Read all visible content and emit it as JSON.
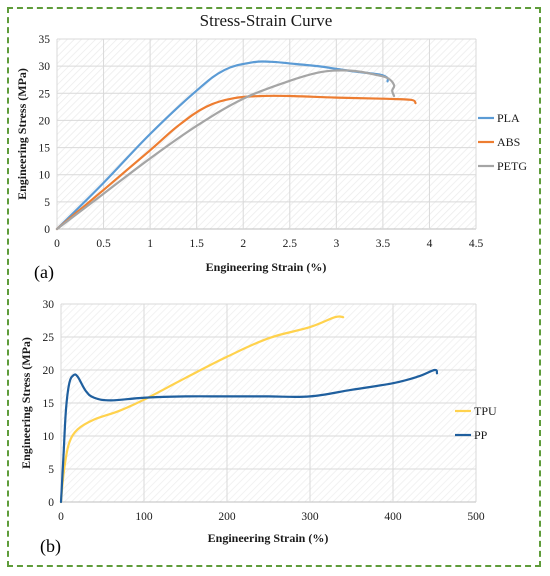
{
  "colors": {
    "frame": "#5e9c3a",
    "grid": "#d9d9d9",
    "axis": "#bfbfbf"
  },
  "chart_data": [
    {
      "type": "line",
      "title": "Stress-Strain Curve",
      "panel_label": "(a)",
      "xlabel": "Engineering Strain (%)",
      "ylabel": "Engineering Stress (MPa)",
      "xlim": [
        0,
        4.5
      ],
      "ylim": [
        0,
        35
      ],
      "x_ticks": [
        "0",
        "0.5",
        "1",
        "1.5",
        "2",
        "2.5",
        "3",
        "3.5",
        "4",
        "4.5"
      ],
      "y_ticks": [
        "0",
        "5",
        "10",
        "15",
        "20",
        "25",
        "30",
        "35"
      ],
      "grid": true,
      "legend": "right",
      "series": [
        {
          "name": "PLA",
          "color": "#5b9bd5",
          "points": [
            [
              0,
              0
            ],
            [
              0.5,
              8.5
            ],
            [
              1,
              17.5
            ],
            [
              1.5,
              25.5
            ],
            [
              1.8,
              29.3
            ],
            [
              2.1,
              30.7
            ],
            [
              2.3,
              30.8
            ],
            [
              2.5,
              30.5
            ],
            [
              2.8,
              30
            ],
            [
              3,
              29.5
            ],
            [
              3.2,
              29
            ],
            [
              3.4,
              28.6
            ],
            [
              3.5,
              28.3
            ],
            [
              3.55,
              27.8
            ],
            [
              3.55,
              27.2
            ]
          ]
        },
        {
          "name": "ABS",
          "color": "#ed7d31",
          "points": [
            [
              0,
              0
            ],
            [
              0.5,
              7.2
            ],
            [
              1,
              14.5
            ],
            [
              1.3,
              19
            ],
            [
              1.6,
              22.5
            ],
            [
              1.9,
              24.1
            ],
            [
              2.2,
              24.5
            ],
            [
              2.5,
              24.5
            ],
            [
              3,
              24.2
            ],
            [
              3.5,
              24
            ],
            [
              3.8,
              23.8
            ],
            [
              3.85,
              23.2
            ]
          ]
        },
        {
          "name": "PETG",
          "color": "#a5a5a5",
          "points": [
            [
              0,
              0
            ],
            [
              0.5,
              6.5
            ],
            [
              1,
              13
            ],
            [
              1.5,
              19
            ],
            [
              2,
              24
            ],
            [
              2.5,
              27.3
            ],
            [
              2.8,
              28.8
            ],
            [
              3,
              29.2
            ],
            [
              3.2,
              29.1
            ],
            [
              3.4,
              28.5
            ],
            [
              3.55,
              27.8
            ],
            [
              3.62,
              26.5
            ],
            [
              3.6,
              25.5
            ],
            [
              3.62,
              24.5
            ]
          ]
        }
      ]
    },
    {
      "type": "line",
      "panel_label": "(b)",
      "xlabel": "Engineering Strain (%)",
      "ylabel": "Engineering Stress (MPa)",
      "xlim": [
        0,
        500
      ],
      "ylim": [
        0,
        30
      ],
      "x_ticks": [
        "0",
        "100",
        "200",
        "300",
        "400",
        "500"
      ],
      "y_ticks": [
        "0",
        "5",
        "10",
        "15",
        "20",
        "25",
        "30"
      ],
      "grid": true,
      "legend": "right",
      "series": [
        {
          "name": "TPU",
          "color": "#ffd24d",
          "points": [
            [
              0,
              0
            ],
            [
              2,
              3
            ],
            [
              5,
              6
            ],
            [
              10,
              9
            ],
            [
              20,
              11
            ],
            [
              40,
              12.5
            ],
            [
              70,
              13.8
            ],
            [
              100,
              15.5
            ],
            [
              150,
              18.8
            ],
            [
              200,
              22
            ],
            [
              250,
              24.8
            ],
            [
              300,
              26.5
            ],
            [
              330,
              28
            ],
            [
              340,
              28
            ]
          ]
        },
        {
          "name": "PP",
          "color": "#1f5f9e",
          "points": [
            [
              0,
              0
            ],
            [
              3,
              7
            ],
            [
              6,
              14
            ],
            [
              10,
              18
            ],
            [
              15,
              19.2
            ],
            [
              20,
              19
            ],
            [
              30,
              16.8
            ],
            [
              40,
              15.8
            ],
            [
              60,
              15.4
            ],
            [
              100,
              15.8
            ],
            [
              150,
              16
            ],
            [
              200,
              16
            ],
            [
              250,
              16
            ],
            [
              300,
              16
            ],
            [
              350,
              17
            ],
            [
              400,
              18
            ],
            [
              430,
              19
            ],
            [
              450,
              20
            ],
            [
              453,
              19.5
            ]
          ]
        }
      ]
    }
  ]
}
